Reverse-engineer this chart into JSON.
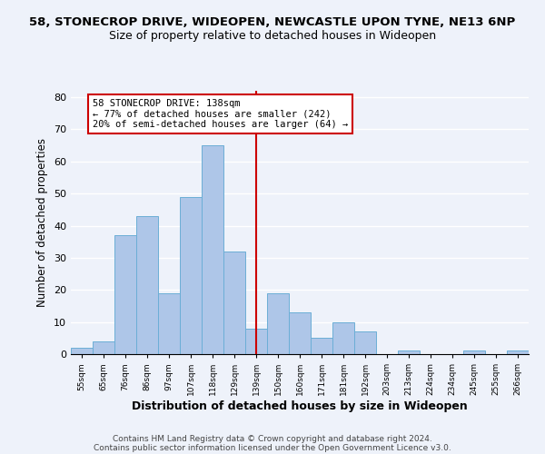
{
  "title": "58, STONECROP DRIVE, WIDEOPEN, NEWCASTLE UPON TYNE, NE13 6NP",
  "subtitle": "Size of property relative to detached houses in Wideopen",
  "xlabel": "Distribution of detached houses by size in Wideopen",
  "ylabel": "Number of detached properties",
  "bin_labels": [
    "55sqm",
    "65sqm",
    "76sqm",
    "86sqm",
    "97sqm",
    "107sqm",
    "118sqm",
    "129sqm",
    "139sqm",
    "150sqm",
    "160sqm",
    "171sqm",
    "181sqm",
    "192sqm",
    "203sqm",
    "213sqm",
    "224sqm",
    "234sqm",
    "245sqm",
    "255sqm",
    "266sqm"
  ],
  "bin_values": [
    2,
    4,
    37,
    43,
    19,
    49,
    65,
    32,
    8,
    19,
    13,
    5,
    10,
    7,
    0,
    1,
    0,
    0,
    1,
    0,
    1
  ],
  "bar_color": "#aec6e8",
  "bar_edge_color": "#6baed6",
  "vline_x_index": 8,
  "vline_color": "#cc0000",
  "annotation_line1": "58 STONECROP DRIVE: 138sqm",
  "annotation_line2": "← 77% of detached houses are smaller (242)",
  "annotation_line3": "20% of semi-detached houses are larger (64) →",
  "annotation_box_color": "#ffffff",
  "annotation_box_edge_color": "#cc0000",
  "ylim": [
    0,
    82
  ],
  "yticks": [
    0,
    10,
    20,
    30,
    40,
    50,
    60,
    70,
    80
  ],
  "footer1": "Contains HM Land Registry data © Crown copyright and database right 2024.",
  "footer2": "Contains public sector information licensed under the Open Government Licence v3.0.",
  "background_color": "#eef2fa",
  "plot_bg_color": "#eef2fa",
  "title_fontsize": 9.5,
  "subtitle_fontsize": 9.0
}
